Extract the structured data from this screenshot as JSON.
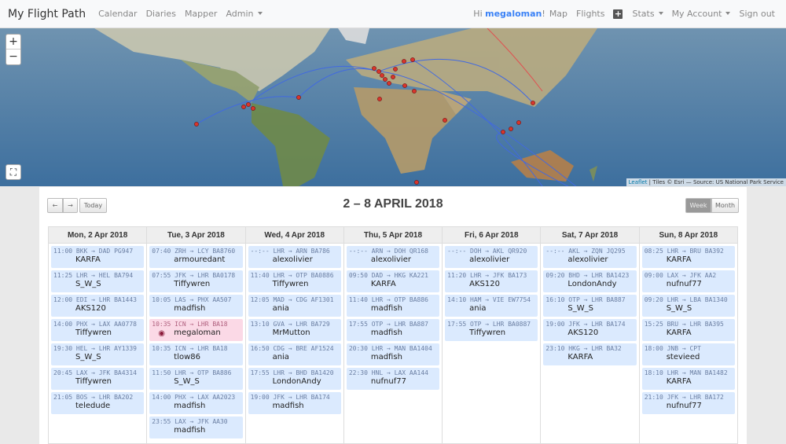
{
  "navbar": {
    "brand": "My Flight Path",
    "left": [
      "Calendar",
      "Diaries",
      "Mapper",
      "Admin"
    ],
    "greeting_prefix": "Hi ",
    "user": "megaloman",
    "greeting_suffix": "!",
    "right": [
      "Map",
      "Flights",
      "Stats",
      "My Account",
      "Sign out"
    ],
    "add_icon": "plus-square-icon"
  },
  "map": {
    "zoom_in": "+",
    "zoom_out": "−",
    "attribution_link": "Leaflet",
    "attribution": " | Tiles © Esri — Source: US National Park Service"
  },
  "calendar": {
    "prev": "←",
    "next": "→",
    "today": "Today",
    "title": "2 – 8 APRIL 2018",
    "view_week": "Week",
    "view_month": "Month",
    "days": [
      {
        "header": "Mon, 2 Apr 2018",
        "events": [
          {
            "t": "11:00 BKK → DAD  PG947",
            "u": "KARFA"
          },
          {
            "t": "11:25 LHR → HEL  BA794",
            "u": "S_W_S"
          },
          {
            "t": "12:00 EDI → LHR  BA1443",
            "u": "AKS120"
          },
          {
            "t": "14:00 PHX → LAX  AA0778",
            "u": "Tiffywren"
          },
          {
            "t": "19:30 HEL → LHR  AY1339",
            "u": "S_W_S"
          },
          {
            "t": "20:45 LAX → JFK  BA4314",
            "u": "Tiffywren"
          },
          {
            "t": "21:05 BOS → LHR  BA202",
            "u": "teledude"
          }
        ]
      },
      {
        "header": "Tue, 3 Apr 2018",
        "events": [
          {
            "t": "07:40 ZRH → LCY  BA8760",
            "u": "armouredant"
          },
          {
            "t": "07:55 JFK → LHR  BA0178",
            "u": "Tiffywren"
          },
          {
            "t": "10:05 LAS → PHX  AA507",
            "u": "madfish"
          },
          {
            "t": "10:35 ICN → LHR  BA18",
            "u": "megaloman",
            "highlight": true
          },
          {
            "t": "10:35 ICN → LHR  BA18",
            "u": "tlow86"
          },
          {
            "t": "11:50 LHR → OTP  BA886",
            "u": "S_W_S"
          },
          {
            "t": "14:00 PHX → LAX  AA2023",
            "u": "madfish"
          },
          {
            "t": "23:55 LAX → JFK  AA30",
            "u": "madfish"
          }
        ]
      },
      {
        "header": "Wed, 4 Apr 2018",
        "events": [
          {
            "t": "--:-- LHR → ARN  BA786",
            "u": "alexolivier"
          },
          {
            "t": "11:40 LHR → OTP  BA0886",
            "u": "Tiffywren"
          },
          {
            "t": "12:05 MAD → CDG  AF1301",
            "u": "ania"
          },
          {
            "t": "13:10 GVA → LHR  BA729",
            "u": "MrMutton"
          },
          {
            "t": "16:50 CDG → BRE  AF1524",
            "u": "ania"
          },
          {
            "t": "17:55 LHR → BHD  BA1420",
            "u": "LondonAndy"
          },
          {
            "t": "19:00 JFK → LHR  BA174",
            "u": "madfish"
          }
        ]
      },
      {
        "header": "Thu, 5 Apr 2018",
        "events": [
          {
            "t": "--:-- ARN → DOH  QR168",
            "u": "alexolivier"
          },
          {
            "t": "09:50 DAD → HKG  KA221",
            "u": "KARFA"
          },
          {
            "t": "11:40 LHR → OTP  BA886",
            "u": "madfish"
          },
          {
            "t": "17:55 OTP → LHR  BA887",
            "u": "madfish"
          },
          {
            "t": "20:30 LHR → MAN  BA1404",
            "u": "madfish"
          },
          {
            "t": "22:30 HNL → LAX  AA144",
            "u": "nufnuf77"
          }
        ]
      },
      {
        "header": "Fri, 6 Apr 2018",
        "events": [
          {
            "t": "--:-- DOH → AKL  QR920",
            "u": "alexolivier"
          },
          {
            "t": "11:20 LHR → JFK  BA173",
            "u": "AKS120"
          },
          {
            "t": "14:10 HAM → VIE  EW7754",
            "u": "ania"
          },
          {
            "t": "17:55 OTP → LHR  BA0887",
            "u": "Tiffywren"
          }
        ]
      },
      {
        "header": "Sat, 7 Apr 2018",
        "events": [
          {
            "t": "--:-- AKL → ZQN  JQ295",
            "u": "alexolivier"
          },
          {
            "t": "09:20 BHD → LHR  BA1423",
            "u": "LondonAndy"
          },
          {
            "t": "16:10 OTP → LHR  BA887",
            "u": "S_W_S"
          },
          {
            "t": "19:00 JFK → LHR  BA174",
            "u": "AKS120"
          },
          {
            "t": "23:10 HKG → LHR  BA32",
            "u": "KARFA"
          }
        ]
      },
      {
        "header": "Sun, 8 Apr 2018",
        "events": [
          {
            "t": "08:25 LHR → BRU  BA392",
            "u": "KARFA"
          },
          {
            "t": "09:00 LAX → JFK  AA2",
            "u": "nufnuf77"
          },
          {
            "t": "09:20 LHR → LBA  BA1340",
            "u": "S_W_S"
          },
          {
            "t": "15:25 BRU → LHR  BA395",
            "u": "KARFA"
          },
          {
            "t": "18:00 JNB → CPT",
            "u": "stevieed"
          },
          {
            "t": "18:10 LHR → MAN  BA1482",
            "u": "KARFA"
          },
          {
            "t": "21:10 JFK → LHR  BA172",
            "u": "nufnuf77"
          }
        ]
      }
    ]
  },
  "colors": {
    "accent": "#3b82f6",
    "event_bg": "#dbeafe",
    "highlight_bg": "#fbd9e6",
    "route": "#4169e1",
    "route_highlight": "#e05050",
    "marker": "#d9352b"
  }
}
